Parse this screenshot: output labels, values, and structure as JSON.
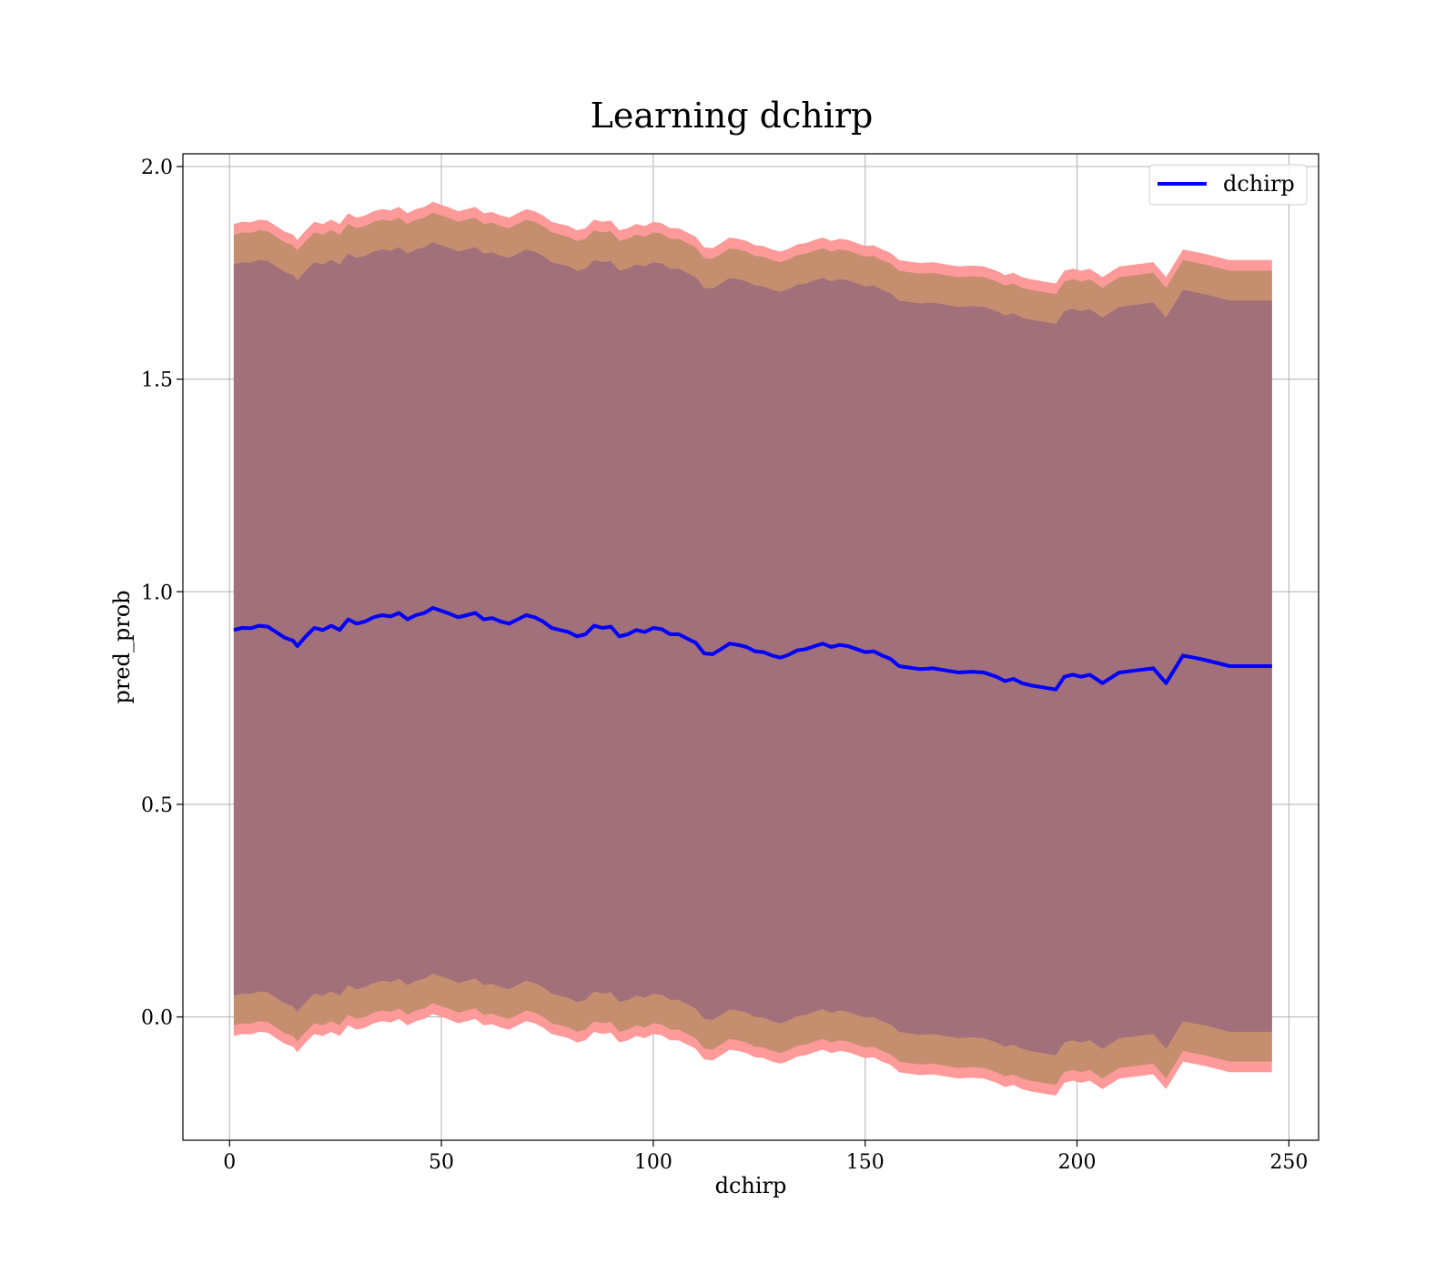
{
  "chart_data": {
    "type": "line",
    "title": "Learning dchirp",
    "xlabel": "dchirp",
    "ylabel": "pred_prob",
    "xlim": [
      -11,
      257
    ],
    "ylim": [
      -0.29,
      2.03
    ],
    "xticks": [
      0,
      50,
      100,
      150,
      200,
      250
    ],
    "yticks": [
      0.0,
      0.5,
      1.0,
      1.5,
      2.0
    ],
    "xtick_labels": [
      "0",
      "50",
      "100",
      "150",
      "200",
      "250"
    ],
    "ytick_labels": [
      "0.0",
      "0.5",
      "1.0",
      "1.5",
      "2.0"
    ],
    "grid": true,
    "legend": {
      "position": "top-right",
      "entries": [
        "dchirp"
      ]
    },
    "colors": {
      "line": "#0000ff",
      "band_outer": "#ff9a9a",
      "band_middle": "#c58f6f",
      "band_inner": "#a1707a",
      "grid": "#b0b0b0"
    },
    "series": [
      {
        "name": "dchirp",
        "x": [
          1,
          3,
          5,
          7,
          9,
          11,
          13,
          15,
          16,
          18,
          20,
          22,
          24,
          26,
          28,
          30,
          32,
          34,
          36,
          38,
          40,
          42,
          44,
          46,
          48,
          50,
          52,
          54,
          56,
          58,
          60,
          62,
          64,
          66,
          68,
          70,
          72,
          74,
          76,
          78,
          80,
          82,
          84,
          86,
          88,
          90,
          92,
          94,
          96,
          98,
          100,
          102,
          104,
          106,
          108,
          110,
          112,
          114,
          116,
          118,
          120,
          122,
          124,
          126,
          128,
          130,
          132,
          134,
          136,
          138,
          140,
          142,
          144,
          146,
          148,
          150,
          152,
          154,
          156,
          158,
          160,
          163,
          166,
          169,
          172,
          175,
          178,
          181,
          183,
          185,
          187,
          189,
          192,
          195,
          197,
          199,
          201,
          203,
          206,
          210,
          214,
          218,
          221,
          225,
          230,
          236,
          246
        ],
        "y": [
          0.91,
          0.915,
          0.914,
          0.92,
          0.918,
          0.905,
          0.892,
          0.885,
          0.872,
          0.895,
          0.915,
          0.91,
          0.92,
          0.91,
          0.935,
          0.925,
          0.93,
          0.94,
          0.945,
          0.942,
          0.95,
          0.935,
          0.945,
          0.95,
          0.962,
          0.955,
          0.948,
          0.94,
          0.945,
          0.95,
          0.935,
          0.938,
          0.93,
          0.925,
          0.935,
          0.945,
          0.94,
          0.93,
          0.915,
          0.91,
          0.905,
          0.895,
          0.9,
          0.92,
          0.915,
          0.918,
          0.895,
          0.9,
          0.91,
          0.905,
          0.915,
          0.912,
          0.9,
          0.9,
          0.89,
          0.88,
          0.855,
          0.853,
          0.865,
          0.878,
          0.875,
          0.87,
          0.86,
          0.858,
          0.85,
          0.845,
          0.852,
          0.862,
          0.865,
          0.872,
          0.878,
          0.87,
          0.875,
          0.872,
          0.865,
          0.858,
          0.86,
          0.85,
          0.842,
          0.825,
          0.822,
          0.818,
          0.82,
          0.815,
          0.81,
          0.812,
          0.81,
          0.8,
          0.79,
          0.795,
          0.785,
          0.78,
          0.775,
          0.77,
          0.8,
          0.805,
          0.8,
          0.805,
          0.785,
          0.81,
          0.815,
          0.82,
          0.785,
          0.85,
          0.84,
          0.825,
          0.825
        ]
      }
    ],
    "bands": [
      {
        "role": "outer",
        "half_width_start": 0.955,
        "half_width_end": 0.955
      },
      {
        "role": "middle",
        "half_width_start": 0.93,
        "half_width_end": 0.93
      },
      {
        "role": "inner",
        "half_width_start": 0.86,
        "half_width_end": 0.86
      }
    ]
  }
}
